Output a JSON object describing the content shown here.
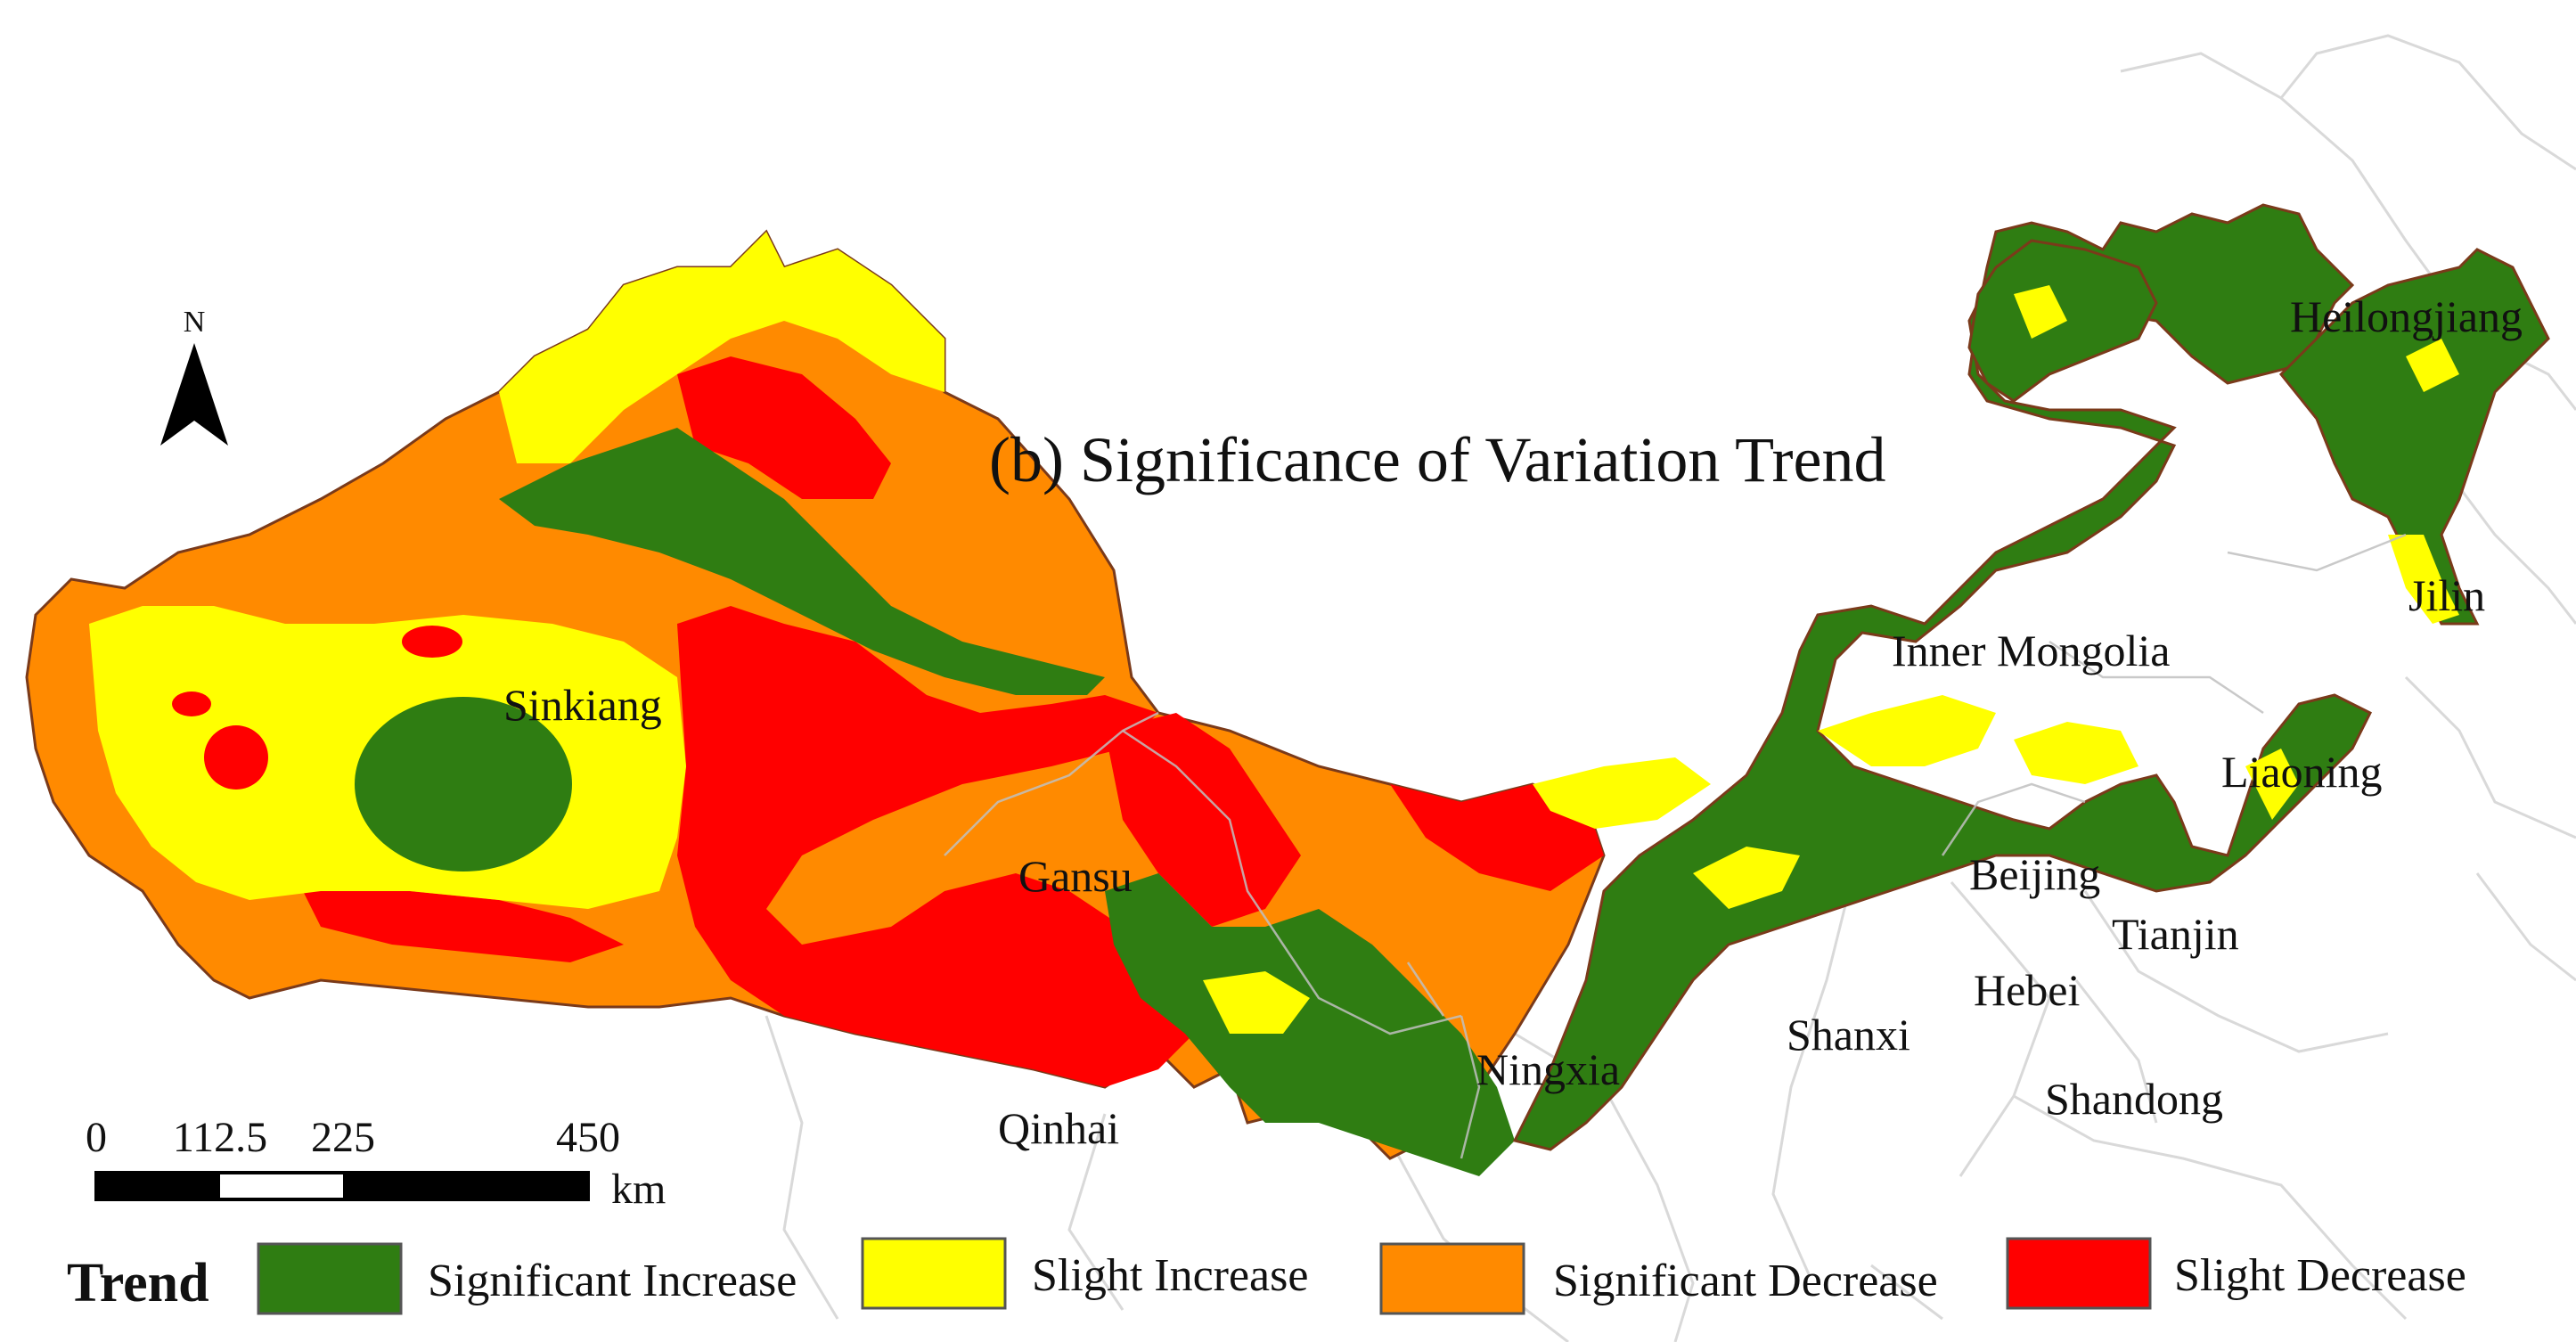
{
  "map": {
    "title": "(b) Significance of Variation Trend",
    "north_arrow": {
      "label": "N",
      "icon": "north-arrow-icon"
    },
    "provinces": [
      {
        "id": "sinkiang",
        "name": "Sinkiang"
      },
      {
        "id": "gansu",
        "name": "Gansu"
      },
      {
        "id": "qinhai",
        "name": "Qinhai"
      },
      {
        "id": "ningxia",
        "name": "Ningxia"
      },
      {
        "id": "inner-mongolia",
        "name": "Inner Mongolia"
      },
      {
        "id": "heilongjiang",
        "name": "Heilongjiang"
      },
      {
        "id": "jilin",
        "name": "Jilin"
      },
      {
        "id": "liaoning",
        "name": "Liaoning"
      },
      {
        "id": "beijing",
        "name": "Beijing"
      },
      {
        "id": "tianjin",
        "name": "Tianjin"
      },
      {
        "id": "hebei",
        "name": "Hebei"
      },
      {
        "id": "shanxi",
        "name": "Shanxi"
      },
      {
        "id": "shandong",
        "name": "Shandong"
      }
    ],
    "scale_bar": {
      "ticks": [
        "0",
        "112.5",
        "225",
        "450"
      ],
      "unit": "km"
    },
    "legend": {
      "title": "Trend",
      "items": [
        {
          "label": "Significant Increase",
          "color": "#2f7d12"
        },
        {
          "label": "Slight Increase",
          "color": "#ffff00"
        },
        {
          "label": "Significant Decrease",
          "color": "#ff8a00"
        },
        {
          "label": "Slight Decrease",
          "color": "#ff0000"
        }
      ]
    },
    "colors": {
      "significant_increase": "#2f7d12",
      "slight_increase": "#ffff00",
      "significant_decrease": "#ff8a00",
      "slight_decrease": "#ff0000",
      "boundary": "#d9d9d9",
      "outline": "#7a3a1a"
    }
  }
}
